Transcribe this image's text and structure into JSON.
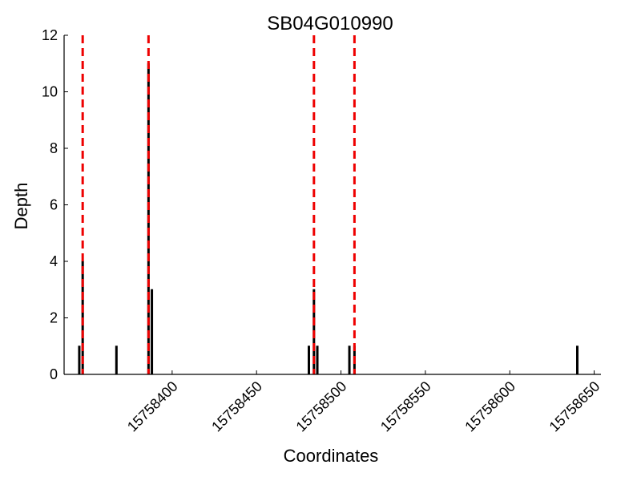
{
  "chart_data": {
    "type": "bar",
    "title": "SB04G010990",
    "xlabel": "Coordinates",
    "ylabel": "Depth",
    "xlim": [
      15758336,
      15758654
    ],
    "ylim": [
      0,
      12
    ],
    "x_ticks": [
      15758400,
      15758450,
      15758500,
      15758550,
      15758600,
      15758650
    ],
    "y_ticks": [
      0,
      2,
      4,
      6,
      8,
      10,
      12
    ],
    "bar_color": "#000000",
    "bar_edge_color": "#000000",
    "bars": [
      {
        "x": 15758345,
        "value": 1
      },
      {
        "x": 15758347,
        "value": 4
      },
      {
        "x": 15758367,
        "value": 1
      },
      {
        "x": 15758386,
        "value": 11
      },
      {
        "x": 15758388,
        "value": 3
      },
      {
        "x": 15758481,
        "value": 1
      },
      {
        "x": 15758484,
        "value": 3
      },
      {
        "x": 15758486,
        "value": 1
      },
      {
        "x": 15758505,
        "value": 1
      },
      {
        "x": 15758508,
        "value": 1
      },
      {
        "x": 15758640,
        "value": 1
      }
    ],
    "vlines": [
      {
        "x": 15758347,
        "color": "#ee0000",
        "style": "dashed"
      },
      {
        "x": 15758386,
        "color": "#ee0000",
        "style": "dashed"
      },
      {
        "x": 15758484,
        "color": "#ee0000",
        "style": "dashed"
      },
      {
        "x": 15758508,
        "color": "#ee0000",
        "style": "dashed"
      }
    ],
    "grid": false
  }
}
